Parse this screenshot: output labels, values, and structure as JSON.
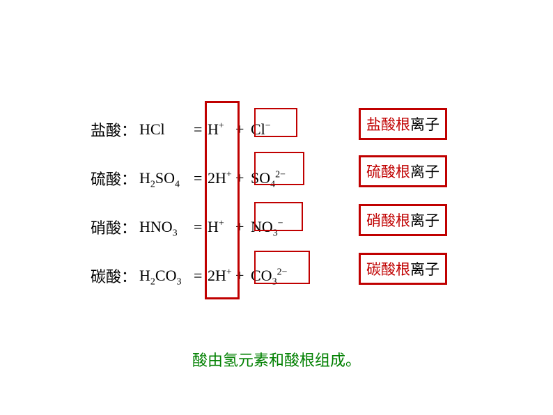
{
  "rows": [
    {
      "name": "盐酸：",
      "lhs_main": "HCl",
      "lhs_sub": "",
      "h_coef": "",
      "h_sup": "+",
      "an_main": "Cl",
      "an_sub": "",
      "an_sup": "−",
      "ion_red": "盐酸根",
      "ion_black": "离子"
    },
    {
      "name": "硫酸：",
      "lhs_pre": "H",
      "lhs_presub": "2",
      "lhs_main": "SO",
      "lhs_sub": "4",
      "h_coef": "2",
      "h_sup": "+",
      "an_main": "SO",
      "an_sub": "4",
      "an_sup": "2−",
      "ion_red": "硫酸根",
      "ion_black": "离子"
    },
    {
      "name": "硝酸：",
      "lhs_main": "HNO",
      "lhs_sub": "3",
      "h_coef": "",
      "h_sup": "+",
      "an_main": "NO",
      "an_sub": "3",
      "an_sup": "−",
      "ion_red": "硝酸根",
      "ion_black": "离子"
    },
    {
      "name": "碳酸：",
      "lhs_pre": "H",
      "lhs_presub": "2",
      "lhs_main": "CO",
      "lhs_sub": "3",
      "h_coef": "2",
      "h_sup": "+",
      "an_main": "CO",
      "an_sub": "3",
      "an_sup": "2−",
      "ion_red": "碳酸根",
      "ion_black": "离子"
    }
  ],
  "equals": "=",
  "plus": "+",
  "h_symbol": "H",
  "summary": "酸由氢元素和酸根组成。",
  "colors": {
    "box_border": "#c00000",
    "text_red": "#c00000",
    "text_black": "#000000",
    "summary_color": "#008000",
    "background": "#ffffff"
  }
}
